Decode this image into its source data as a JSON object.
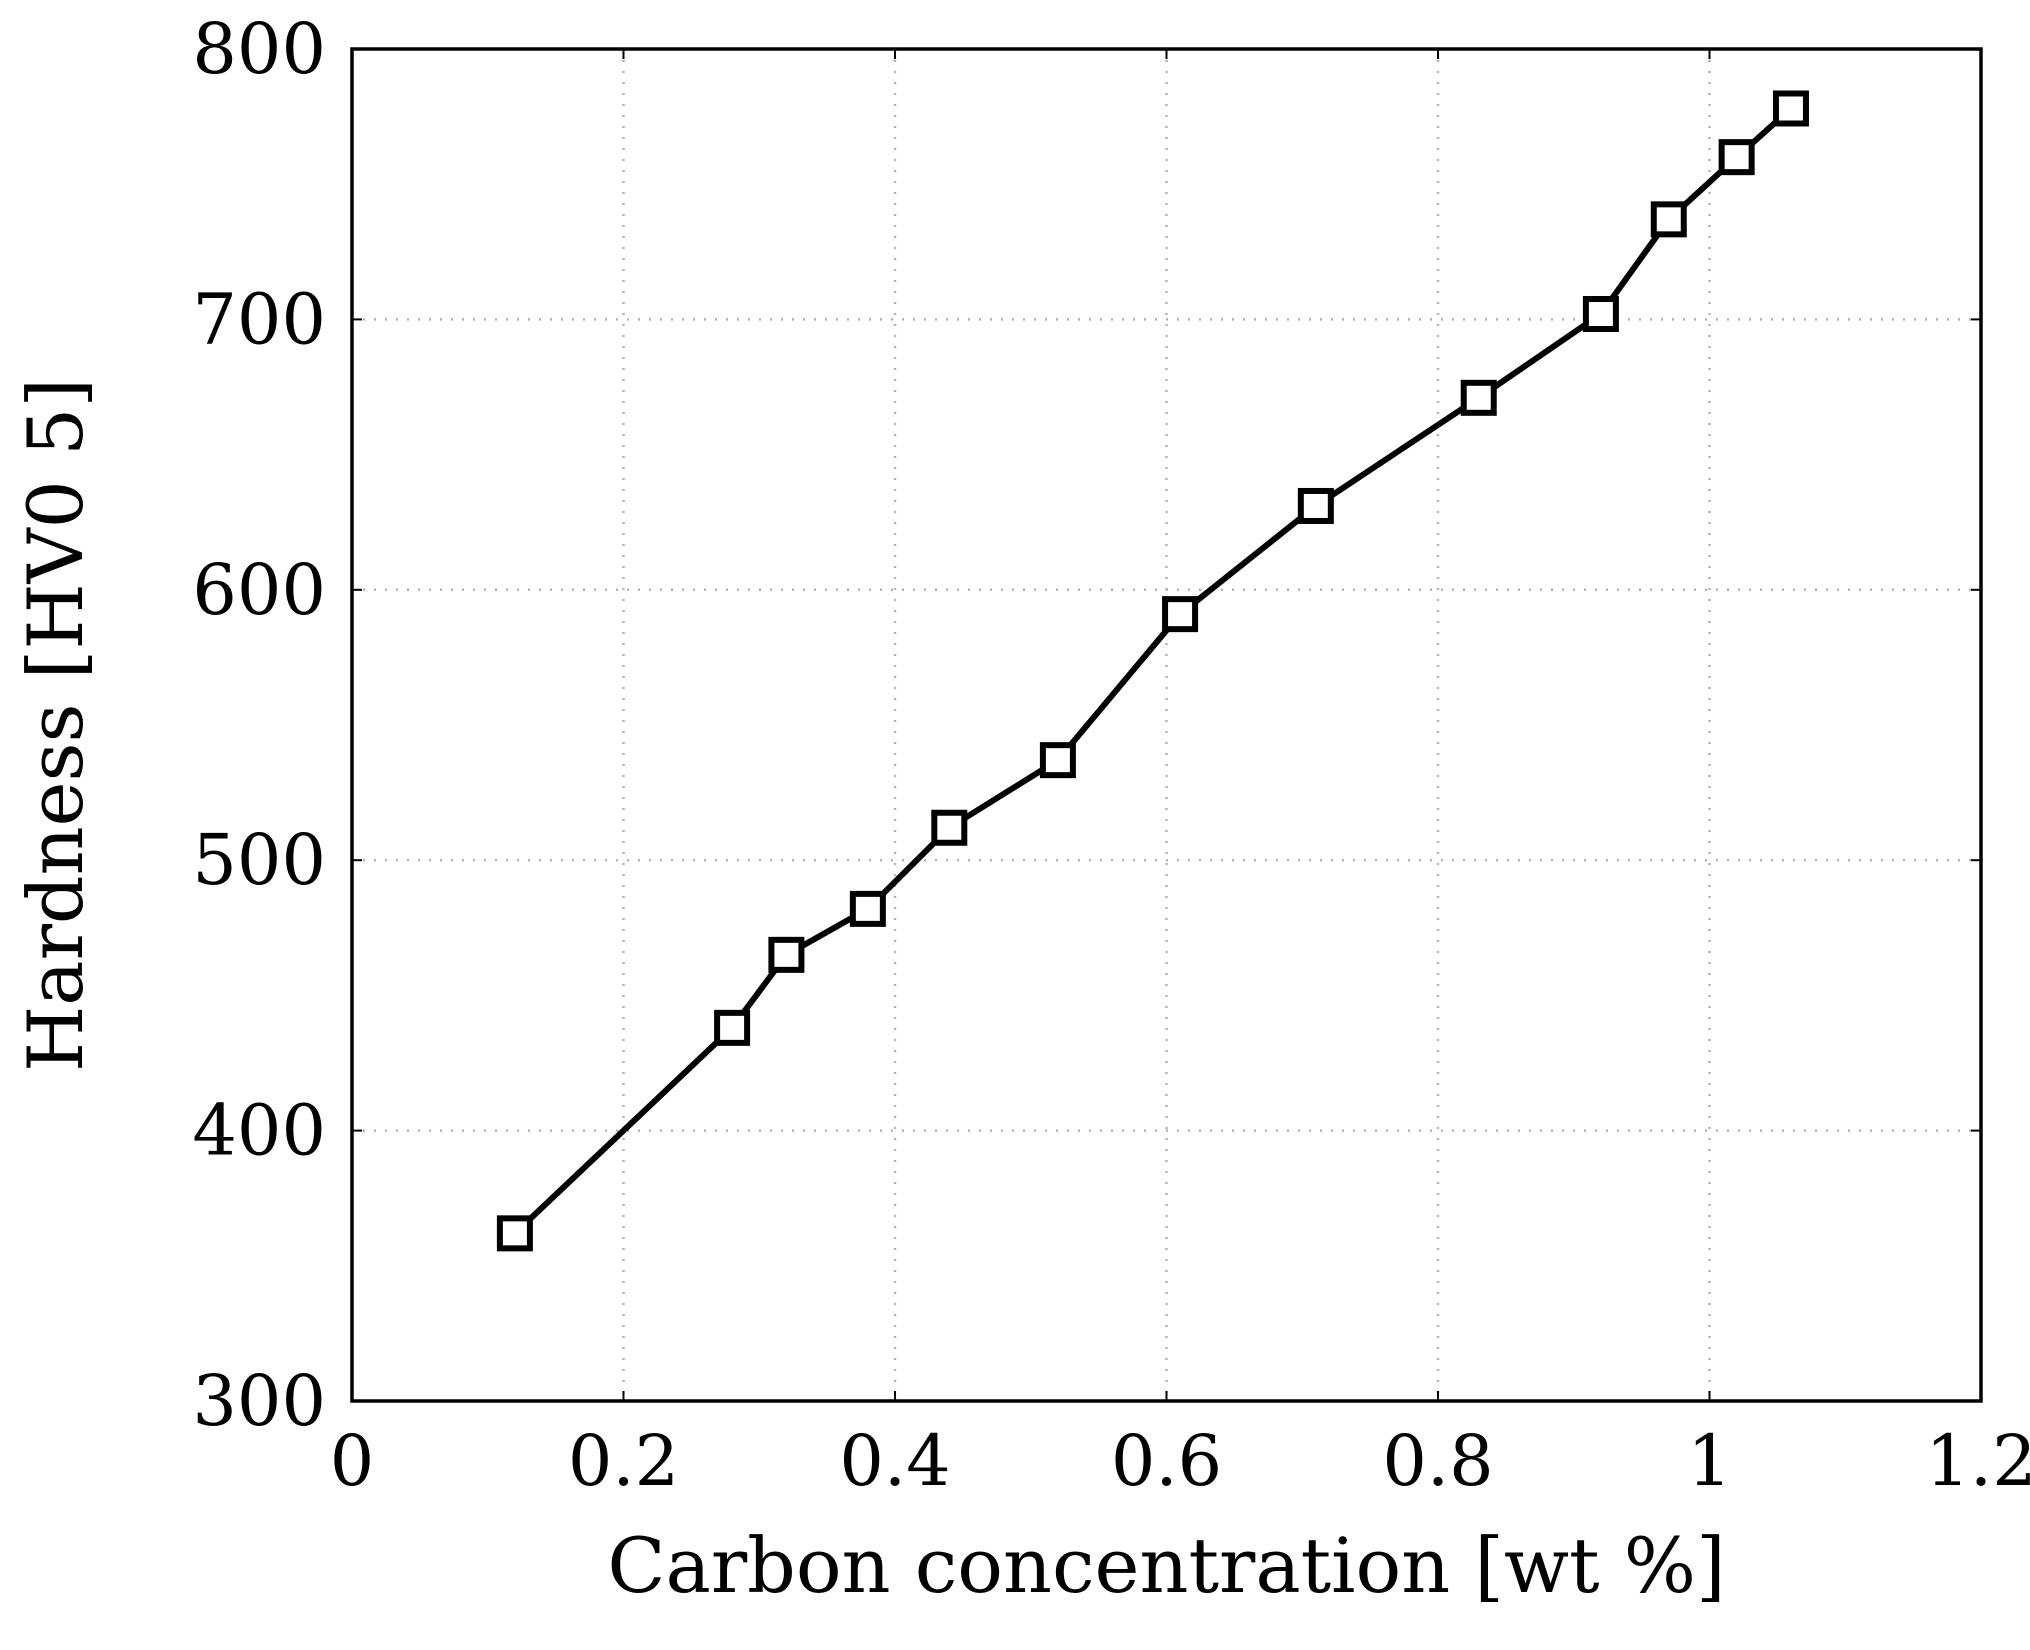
{
  "chart_data": {
    "type": "line",
    "title": "",
    "xlabel": "Carbon concentration [wt %]",
    "ylabel": "Hardness [HV0 5]",
    "xlim": [
      0,
      1.2
    ],
    "ylim": [
      300,
      800
    ],
    "xticks": [
      0,
      0.2,
      0.4,
      0.6,
      0.8,
      1,
      1.2
    ],
    "xtick_labels": [
      "0",
      "0.2",
      "0.4",
      "0.6",
      "0.8",
      "1",
      "1.2"
    ],
    "yticks": [
      300,
      400,
      500,
      600,
      700,
      800
    ],
    "ytick_labels": [
      "300",
      "400",
      "500",
      "600",
      "700",
      "800"
    ],
    "grid": true,
    "marker": "square",
    "colors": {
      "line": "#000000",
      "grid": "#b3b3b3",
      "axis": "#000000"
    },
    "series": [
      {
        "name": "Hardness",
        "x": [
          0.12,
          0.28,
          0.32,
          0.38,
          0.44,
          0.52,
          0.61,
          0.71,
          0.83,
          0.92,
          0.97,
          1.02,
          1.06
        ],
        "y": [
          362,
          438,
          465,
          482,
          512,
          537,
          591,
          631,
          671,
          702,
          737,
          760,
          778
        ]
      }
    ]
  }
}
